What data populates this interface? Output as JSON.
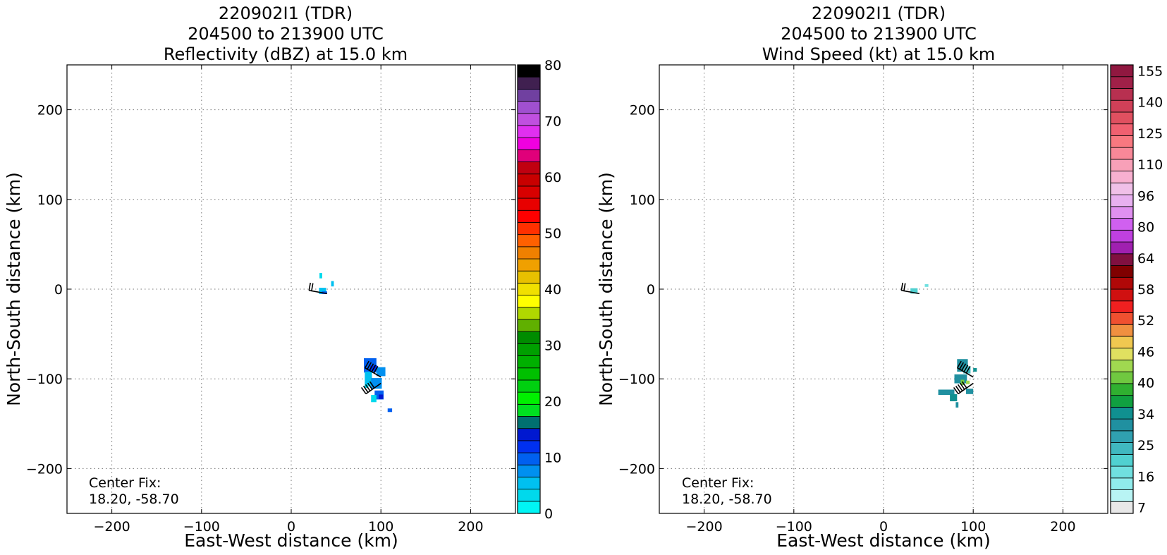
{
  "chart_data": [
    {
      "type": "heatmap",
      "title": [
        "220902I1 (TDR)",
        "204500 to 213900 UTC",
        "Reflectivity (dBZ) at 15.0 km"
      ],
      "xlabel": "East-West distance (km)",
      "ylabel": "North-South distance (km)",
      "xlim": [
        -250,
        250
      ],
      "ylim": [
        -250,
        250
      ],
      "xticks": [
        -200,
        -100,
        0,
        100,
        200
      ],
      "yticks": [
        -200,
        -100,
        0,
        100,
        200
      ],
      "xtick_labels": [
        "−200",
        "−100",
        "0",
        "100",
        "200"
      ],
      "ytick_labels": [
        "−200",
        "−100",
        "0",
        "100",
        "200"
      ],
      "grid": true,
      "annotation": [
        "Center Fix:",
        "18.20, -58.70"
      ],
      "colorbar": {
        "label_values": [
          "0",
          "10",
          "20",
          "30",
          "40",
          "50",
          "60",
          "70",
          "80"
        ],
        "colors": [
          "#00f5f5",
          "#00d9ec",
          "#00c0f0",
          "#0090f0",
          "#0060f0",
          "#0030f0",
          "#0018d0",
          "#007070",
          "#00e020",
          "#00f000",
          "#00d010",
          "#00c000",
          "#00b000",
          "#00a000",
          "#008c00",
          "#60b000",
          "#b0d800",
          "#ffff00",
          "#f0e000",
          "#e8c000",
          "#f0a000",
          "#f08000",
          "#ff6000",
          "#ff3000",
          "#ff0000",
          "#e80000",
          "#d80000",
          "#c80000",
          "#c00010",
          "#e0007a",
          "#f000e0",
          "#e030f0",
          "#c050e0",
          "#a050d0",
          "#7040a0",
          "#402050",
          "#000000"
        ]
      },
      "echo_cells": [
        {
          "x": 35,
          "y": -2,
          "w": 8,
          "h": 7,
          "v": "#00c0f0"
        },
        {
          "x": 37,
          "y": -4,
          "w": 6,
          "h": 3,
          "v": "#0060f0"
        },
        {
          "x": 33,
          "y": 15,
          "w": 3,
          "h": 6,
          "v": "#00d9ec"
        },
        {
          "x": 46,
          "y": 6,
          "w": 3,
          "h": 6,
          "v": "#00c0f0"
        },
        {
          "x": 88,
          "y": -85,
          "w": 14,
          "h": 16,
          "v": "#0060f0"
        },
        {
          "x": 92,
          "y": -88,
          "w": 8,
          "h": 6,
          "v": "#0030f0"
        },
        {
          "x": 100,
          "y": -92,
          "w": 10,
          "h": 10,
          "v": "#0090f0"
        },
        {
          "x": 86,
          "y": -100,
          "w": 8,
          "h": 16,
          "v": "#00c0f0"
        },
        {
          "x": 95,
          "y": -105,
          "w": 12,
          "h": 12,
          "v": "#0090f0"
        },
        {
          "x": 98,
          "y": -118,
          "w": 10,
          "h": 10,
          "v": "#0060f0"
        },
        {
          "x": 100,
          "y": -120,
          "w": 5,
          "h": 5,
          "v": "#0018d0"
        },
        {
          "x": 92,
          "y": -122,
          "w": 6,
          "h": 8,
          "v": "#00d9ec"
        },
        {
          "x": 84,
          "y": -108,
          "w": 4,
          "h": 4,
          "v": "#00d9ec"
        },
        {
          "x": 110,
          "y": -135,
          "w": 5,
          "h": 4,
          "v": "#0060f0"
        }
      ]
    },
    {
      "type": "heatmap",
      "title": [
        "220902I1 (TDR)",
        "204500 to 213900 UTC",
        "Wind Speed (kt) at 15.0 km"
      ],
      "xlabel": "East-West distance (km)",
      "ylabel": "North-South distance (km)",
      "xlim": [
        -250,
        250
      ],
      "ylim": [
        -250,
        250
      ],
      "xticks": [
        -200,
        -100,
        0,
        100,
        200
      ],
      "yticks": [
        -200,
        -100,
        0,
        100,
        200
      ],
      "xtick_labels": [
        "−200",
        "−100",
        "0",
        "100",
        "200"
      ],
      "ytick_labels": [
        "−200",
        "−100",
        "0",
        "100",
        "200"
      ],
      "grid": true,
      "annotation": [
        "Center Fix:",
        "18.20, -58.70"
      ],
      "colorbar": {
        "label_values": [
          "7",
          "16",
          "25",
          "34",
          "40",
          "46",
          "52",
          "58",
          "64",
          "80",
          "96",
          "110",
          "125",
          "140",
          "155"
        ],
        "colors": [
          "#e8e8e8",
          "#b8f4f4",
          "#90ecec",
          "#70e0e0",
          "#50d0d0",
          "#40b8c0",
          "#30a0b0",
          "#2090a0",
          "#109090",
          "#10a040",
          "#30b030",
          "#70c840",
          "#a0d850",
          "#e0e060",
          "#f0c850",
          "#f09040",
          "#f05030",
          "#f02020",
          "#d01010",
          "#b00808",
          "#800000",
          "#801040",
          "#a020b0",
          "#c040e0",
          "#d060f0",
          "#e090f0",
          "#e8b0f0",
          "#f0c0e8",
          "#f8b0d0",
          "#f8a0b8",
          "#f88898",
          "#f87880",
          "#f06070",
          "#e05060",
          "#d04058",
          "#b83050",
          "#a02048",
          "#901840"
        ]
      },
      "echo_cells": [
        {
          "x": 34,
          "y": -2,
          "w": 8,
          "h": 6,
          "v": "#50d0d0"
        },
        {
          "x": 48,
          "y": 4,
          "w": 4,
          "h": 3,
          "v": "#70e0e0"
        },
        {
          "x": 88,
          "y": -85,
          "w": 12,
          "h": 14,
          "v": "#2090a0"
        },
        {
          "x": 93,
          "y": -90,
          "w": 8,
          "h": 8,
          "v": "#40b8c0"
        },
        {
          "x": 86,
          "y": -100,
          "w": 14,
          "h": 10,
          "v": "#2090a0"
        },
        {
          "x": 88,
          "y": -104,
          "w": 4,
          "h": 6,
          "v": "#70c840"
        },
        {
          "x": 94,
          "y": -104,
          "w": 4,
          "h": 4,
          "v": "#a0d850"
        },
        {
          "x": 70,
          "y": -115,
          "w": 18,
          "h": 6,
          "v": "#2090a0"
        },
        {
          "x": 78,
          "y": -121,
          "w": 8,
          "h": 8,
          "v": "#109090"
        },
        {
          "x": 82,
          "y": -129,
          "w": 3,
          "h": 6,
          "v": "#2090a0"
        },
        {
          "x": 96,
          "y": -114,
          "w": 8,
          "h": 6,
          "v": "#2090a0"
        },
        {
          "x": 102,
          "y": -90,
          "w": 4,
          "h": 4,
          "v": "#109090"
        }
      ]
    }
  ],
  "wind_barbs": [
    {
      "x": 40,
      "y": -5,
      "dir_deg": 280,
      "speed_kt": 20
    },
    {
      "x": 100,
      "y": -98,
      "dir_deg": 300,
      "speed_kt": 55
    },
    {
      "x": 100,
      "y": -105,
      "dir_deg": 235,
      "speed_kt": 50
    }
  ]
}
